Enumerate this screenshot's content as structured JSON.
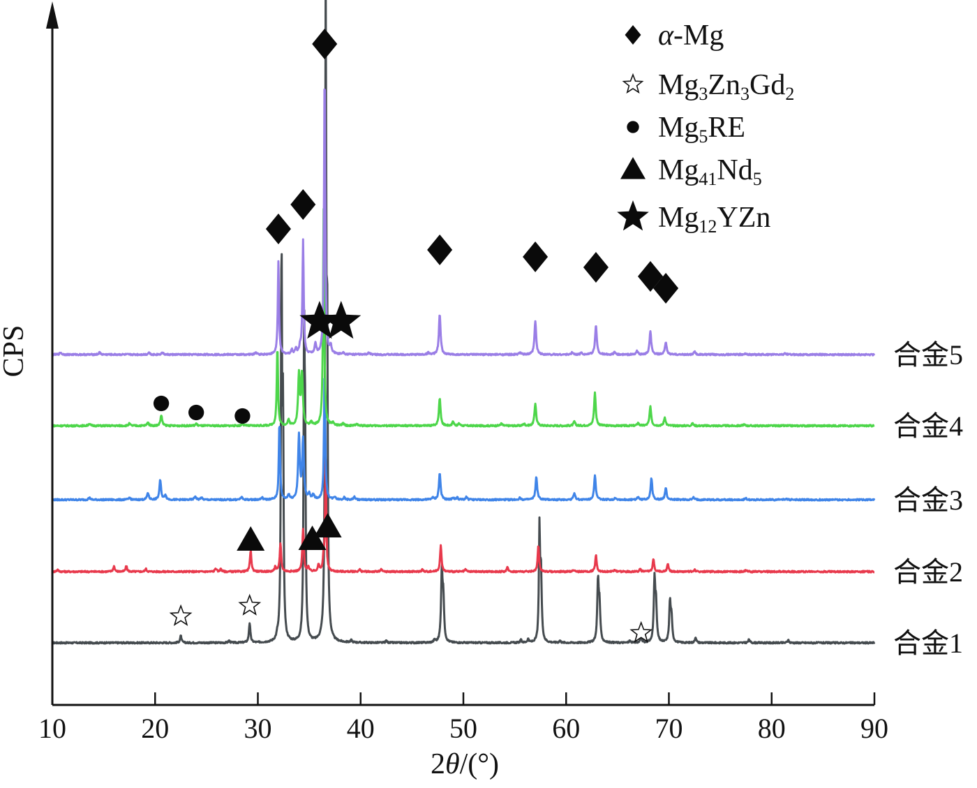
{
  "chart_data": {
    "type": "line",
    "title": "",
    "xlabel": "2θ/(°)",
    "xlabel_parts": {
      "prefix": "2",
      "theta": "θ",
      "suffix": "/(°)"
    },
    "ylabel": "CPS",
    "xlim": [
      10,
      90
    ],
    "ylim": [
      0,
      1000
    ],
    "y_units": "a.u. (stacked, offset)",
    "xticks": [
      10,
      20,
      30,
      40,
      50,
      60,
      70,
      80,
      90
    ],
    "grid": false,
    "legend_position": "top-right",
    "series": [
      {
        "name": "合金1",
        "color": "#454b4f",
        "offset": 89,
        "peak_width": 0.14,
        "peaks": [
          [
            22.5,
            10
          ],
          [
            27.2,
            3
          ],
          [
            29.2,
            28
          ],
          [
            31.9,
            6
          ],
          [
            32.3,
            548
          ],
          [
            32.45,
            300
          ],
          [
            34.5,
            418
          ],
          [
            34.6,
            250
          ],
          [
            36.6,
            909
          ],
          [
            36.75,
            400
          ],
          [
            39.1,
            3
          ],
          [
            42.5,
            3
          ],
          [
            47.2,
            4
          ],
          [
            47.9,
            99
          ],
          [
            48.05,
            60
          ],
          [
            55.6,
            4
          ],
          [
            56.3,
            5
          ],
          [
            57.4,
            156
          ],
          [
            57.55,
            100
          ],
          [
            59.4,
            3
          ],
          [
            63.1,
            86
          ],
          [
            63.25,
            50
          ],
          [
            66.2,
            3
          ],
          [
            67.3,
            8
          ],
          [
            68.6,
            89
          ],
          [
            68.75,
            50
          ],
          [
            70.1,
            56
          ],
          [
            70.25,
            35
          ],
          [
            72.6,
            8
          ],
          [
            77.8,
            5
          ],
          [
            81.6,
            4
          ]
        ]
      },
      {
        "name": "合金2",
        "color": "#e8394c",
        "offset": 191,
        "peak_width": 0.14,
        "peaks": [
          [
            10.5,
            3
          ],
          [
            16.0,
            8
          ],
          [
            17.2,
            8
          ],
          [
            19.1,
            4
          ],
          [
            25.9,
            5
          ],
          [
            26.4,
            4
          ],
          [
            29.3,
            30
          ],
          [
            31.7,
            7
          ],
          [
            32.2,
            41
          ],
          [
            34.4,
            61
          ],
          [
            34.9,
            7
          ],
          [
            35.9,
            10
          ],
          [
            36.4,
            20
          ],
          [
            36.6,
            157
          ],
          [
            39.9,
            3
          ],
          [
            42.0,
            3
          ],
          [
            46.0,
            3
          ],
          [
            47.8,
            37
          ],
          [
            50.2,
            3
          ],
          [
            54.3,
            6
          ],
          [
            57.3,
            37
          ],
          [
            60.7,
            3
          ],
          [
            62.9,
            24
          ],
          [
            64.7,
            3
          ],
          [
            67.2,
            4
          ],
          [
            68.5,
            19
          ],
          [
            69.9,
            12
          ],
          [
            72.5,
            3
          ],
          [
            77.5,
            2
          ]
        ]
      },
      {
        "name": "合金3",
        "color": "#3f84e8",
        "offset": 294,
        "peak_width": 0.16,
        "peaks": [
          [
            13.6,
            3
          ],
          [
            17.5,
            3
          ],
          [
            19.3,
            10
          ],
          [
            20.5,
            28
          ],
          [
            21.0,
            7
          ],
          [
            23.9,
            5
          ],
          [
            24.5,
            3
          ],
          [
            28.4,
            4
          ],
          [
            30.4,
            3
          ],
          [
            32.1,
            111
          ],
          [
            33.0,
            7
          ],
          [
            34.0,
            91
          ],
          [
            34.4,
            86
          ],
          [
            35.0,
            7
          ],
          [
            35.4,
            7
          ],
          [
            36.5,
            186
          ],
          [
            37.5,
            4
          ],
          [
            38.4,
            3
          ],
          [
            39.4,
            4
          ],
          [
            47.0,
            3
          ],
          [
            47.7,
            38
          ],
          [
            49.0,
            3
          ],
          [
            49.4,
            3
          ],
          [
            50.3,
            4
          ],
          [
            55.5,
            3
          ],
          [
            57.1,
            33
          ],
          [
            60.8,
            10
          ],
          [
            62.8,
            34
          ],
          [
            64.8,
            3
          ],
          [
            67.0,
            4
          ],
          [
            68.3,
            31
          ],
          [
            69.7,
            16
          ],
          [
            72.4,
            3
          ],
          [
            77.5,
            2
          ],
          [
            81.4,
            2
          ]
        ]
      },
      {
        "name": "合金4",
        "color": "#4dd64a",
        "offset": 400,
        "peak_width": 0.16,
        "peaks": [
          [
            13.6,
            3
          ],
          [
            17.5,
            3
          ],
          [
            19.3,
            5
          ],
          [
            20.6,
            15
          ],
          [
            24.0,
            3
          ],
          [
            28.5,
            3
          ],
          [
            31.9,
            113
          ],
          [
            33.0,
            8
          ],
          [
            34.0,
            73
          ],
          [
            34.3,
            73
          ],
          [
            35.2,
            5
          ],
          [
            36.4,
            310
          ],
          [
            37.3,
            4
          ],
          [
            38.3,
            3
          ],
          [
            39.6,
            3
          ],
          [
            47.7,
            40
          ],
          [
            49.0,
            6
          ],
          [
            49.6,
            3
          ],
          [
            53.7,
            3
          ],
          [
            55.9,
            3
          ],
          [
            57.0,
            32
          ],
          [
            60.8,
            6
          ],
          [
            62.8,
            47
          ],
          [
            67.0,
            4
          ],
          [
            68.2,
            27
          ],
          [
            69.6,
            12
          ],
          [
            72.3,
            3
          ],
          [
            77.3,
            2
          ]
        ]
      },
      {
        "name": "合金5",
        "color": "#9a7ee6",
        "offset": 502,
        "peak_width": 0.16,
        "peaks": [
          [
            10.8,
            3
          ],
          [
            14.6,
            3
          ],
          [
            19.4,
            3
          ],
          [
            20.7,
            3
          ],
          [
            29.8,
            3
          ],
          [
            32.0,
            133
          ],
          [
            33.3,
            6
          ],
          [
            33.7,
            8
          ],
          [
            34.1,
            10
          ],
          [
            34.4,
            163
          ],
          [
            35.6,
            15
          ],
          [
            36.5,
            408
          ],
          [
            37.1,
            10
          ],
          [
            38.3,
            3
          ],
          [
            40.8,
            3
          ],
          [
            46.6,
            3
          ],
          [
            47.7,
            58
          ],
          [
            55.5,
            3
          ],
          [
            57.0,
            48
          ],
          [
            60.6,
            3
          ],
          [
            61.5,
            3
          ],
          [
            62.9,
            43
          ],
          [
            64.7,
            3
          ],
          [
            66.9,
            5
          ],
          [
            68.2,
            33
          ],
          [
            69.7,
            18
          ],
          [
            72.5,
            4
          ],
          [
            77.4,
            2
          ],
          [
            81.3,
            2
          ]
        ]
      }
    ],
    "markers": [
      {
        "phase": "α-Mg",
        "symbol": "diamond",
        "points": [
          [
            32.0,
            682
          ],
          [
            34.4,
            717
          ],
          [
            36.5,
            947
          ],
          [
            47.7,
            652
          ],
          [
            57.0,
            642
          ],
          [
            62.9,
            627
          ],
          [
            68.2,
            614
          ],
          [
            69.7,
            597
          ]
        ]
      },
      {
        "phase": "Mg3Zn3Gd2",
        "symbol": "open-star",
        "points": [
          [
            22.5,
            127
          ],
          [
            29.2,
            142
          ],
          [
            67.3,
            103
          ]
        ]
      },
      {
        "phase": "Mg5RE",
        "symbol": "circle",
        "points": [
          [
            20.6,
            432
          ],
          [
            24.0,
            419
          ],
          [
            28.5,
            414
          ]
        ]
      },
      {
        "phase": "Mg41Nd5",
        "symbol": "triangle",
        "points": [
          [
            29.3,
            236
          ],
          [
            35.3,
            237
          ],
          [
            36.8,
            255
          ]
        ]
      },
      {
        "phase": "Mg12YZn",
        "symbol": "filled-star",
        "points": [
          [
            36.0,
            549
          ],
          [
            38.1,
            549
          ]
        ]
      }
    ],
    "legend": [
      {
        "symbol": "diamond",
        "parts": [
          {
            "t": "α",
            "italic": true
          },
          {
            "t": "-Mg"
          }
        ]
      },
      {
        "symbol": "open-star",
        "parts": [
          {
            "t": "Mg"
          },
          {
            "t": "3",
            "sub": true
          },
          {
            "t": "Zn"
          },
          {
            "t": "3",
            "sub": true
          },
          {
            "t": "Gd"
          },
          {
            "t": "2",
            "sub": true
          }
        ]
      },
      {
        "symbol": "circle",
        "parts": [
          {
            "t": "Mg"
          },
          {
            "t": "5",
            "sub": true
          },
          {
            "t": "RE"
          }
        ]
      },
      {
        "symbol": "triangle",
        "parts": [
          {
            "t": "Mg"
          },
          {
            "t": "41",
            "sub": true
          },
          {
            "t": "Nd"
          },
          {
            "t": "5",
            "sub": true
          }
        ]
      },
      {
        "symbol": "filled-star",
        "parts": [
          {
            "t": "Mg"
          },
          {
            "t": "12",
            "sub": true
          },
          {
            "t": "YZn"
          }
        ]
      }
    ]
  }
}
